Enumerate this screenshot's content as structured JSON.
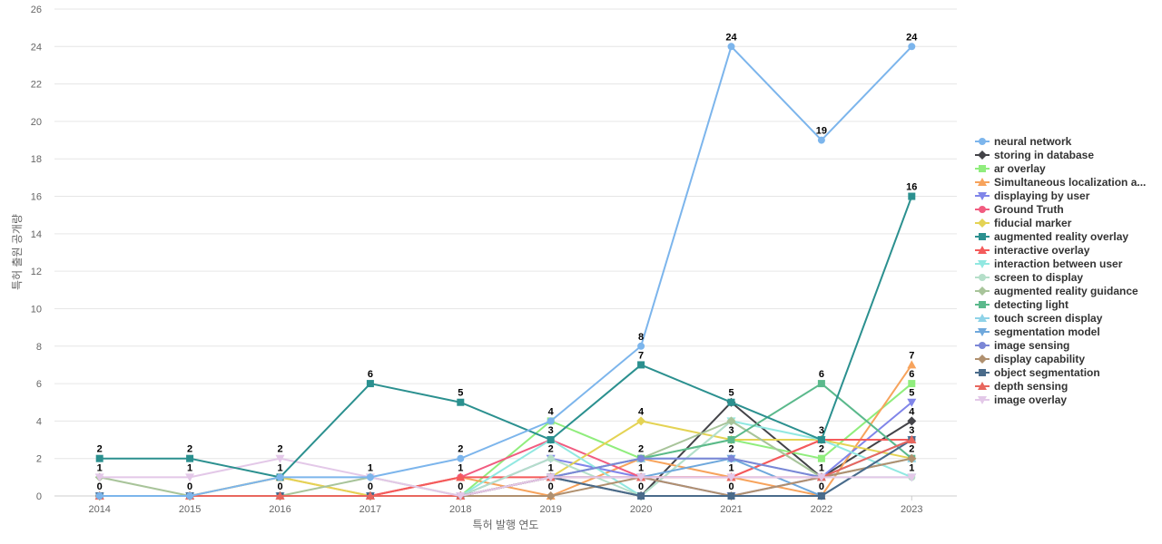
{
  "chart_data": {
    "type": "line",
    "xlabel": "특허 발행 연도",
    "ylabel": "특허 출원 공개량",
    "x": [
      2014,
      2015,
      2016,
      2017,
      2018,
      2019,
      2020,
      2021,
      2022,
      2023
    ],
    "ylim": [
      0,
      26
    ],
    "yticks": [
      0,
      2,
      4,
      6,
      8,
      10,
      12,
      14,
      16,
      18,
      20,
      22,
      24,
      26
    ],
    "grid": true,
    "legend_position": "right",
    "series": [
      {
        "name": "neural network",
        "color": "#7cb5ec",
        "marker": "circle",
        "values": [
          0,
          0,
          1,
          1,
          2,
          4,
          8,
          24,
          19,
          24
        ]
      },
      {
        "name": "storing in database",
        "color": "#434348",
        "marker": "diamond",
        "values": [
          0,
          0,
          0,
          0,
          0,
          1,
          0,
          5,
          1,
          4
        ]
      },
      {
        "name": "ar overlay",
        "color": "#90ed7d",
        "marker": "square",
        "values": [
          0,
          0,
          0,
          0,
          0,
          4,
          2,
          3,
          2,
          6
        ]
      },
      {
        "name": "Simultaneous localization a...",
        "color": "#f7a35c",
        "marker": "triangle",
        "values": [
          0,
          0,
          1,
          0,
          1,
          0,
          2,
          1,
          0,
          7
        ]
      },
      {
        "name": "displaying by user",
        "color": "#8085e9",
        "marker": "triangle-down",
        "values": [
          0,
          0,
          0,
          0,
          0,
          2,
          1,
          0,
          1,
          5
        ]
      },
      {
        "name": "Ground Truth",
        "color": "#f15c80",
        "marker": "circle",
        "values": [
          0,
          0,
          0,
          0,
          1,
          3,
          1,
          1,
          3,
          3
        ]
      },
      {
        "name": "fiducial marker",
        "color": "#e4d354",
        "marker": "diamond",
        "values": [
          0,
          0,
          1,
          0,
          0,
          1,
          4,
          3,
          3,
          2
        ]
      },
      {
        "name": "augmented reality overlay",
        "color": "#2b908f",
        "marker": "square",
        "values": [
          2,
          2,
          1,
          6,
          5,
          3,
          7,
          5,
          3,
          16
        ]
      },
      {
        "name": "interactive overlay",
        "color": "#f45b5b",
        "marker": "triangle",
        "values": [
          0,
          0,
          0,
          0,
          1,
          1,
          1,
          1,
          3,
          3
        ]
      },
      {
        "name": "interaction between user",
        "color": "#91e8e1",
        "marker": "triangle-down",
        "values": [
          0,
          0,
          0,
          0,
          0,
          3,
          0,
          4,
          3,
          1
        ]
      },
      {
        "name": "screen to display",
        "color": "#b5dfc9",
        "marker": "circle",
        "values": [
          0,
          0,
          0,
          0,
          0,
          2,
          0,
          4,
          1,
          1
        ]
      },
      {
        "name": "augmented reality guidance",
        "color": "#a8c49a",
        "marker": "diamond",
        "values": [
          1,
          0,
          0,
          1,
          0,
          1,
          2,
          4,
          1,
          2
        ]
      },
      {
        "name": "detecting light",
        "color": "#5bb98c",
        "marker": "square",
        "values": [
          0,
          0,
          0,
          0,
          0,
          1,
          2,
          3,
          6,
          2
        ]
      },
      {
        "name": "touch screen display",
        "color": "#8fd3e8",
        "marker": "triangle",
        "values": [
          0,
          0,
          0,
          0,
          0,
          1,
          2,
          2,
          1,
          2
        ]
      },
      {
        "name": "segmentation model",
        "color": "#6fa8dc",
        "marker": "triangle-down",
        "values": [
          0,
          0,
          0,
          0,
          0,
          1,
          1,
          2,
          0,
          3
        ]
      },
      {
        "name": "image sensing",
        "color": "#7b86d6",
        "marker": "circle",
        "values": [
          0,
          0,
          0,
          0,
          0,
          1,
          2,
          2,
          1,
          3
        ]
      },
      {
        "name": "display capability",
        "color": "#b0906f",
        "marker": "diamond",
        "values": [
          0,
          0,
          0,
          0,
          0,
          0,
          1,
          0,
          1,
          2
        ]
      },
      {
        "name": "object segmentation",
        "color": "#4a6b8a",
        "marker": "square",
        "values": [
          0,
          0,
          0,
          0,
          0,
          1,
          0,
          0,
          0,
          3
        ]
      },
      {
        "name": "depth sensing",
        "color": "#e8675e",
        "marker": "triangle",
        "values": [
          0,
          0,
          0,
          0,
          0,
          1,
          1,
          1,
          1,
          3
        ]
      },
      {
        "name": "image overlay",
        "color": "#e3c8e8",
        "marker": "triangle-down",
        "values": [
          1,
          1,
          2,
          1,
          0,
          1,
          1,
          1,
          1,
          1
        ]
      }
    ],
    "data_labels": [
      {
        "x": 2014,
        "text": "2",
        "y": 2
      },
      {
        "x": 2014,
        "text": "1",
        "y": 1
      },
      {
        "x": 2014,
        "text": "0",
        "y": 0
      },
      {
        "x": 2015,
        "text": "2",
        "y": 2
      },
      {
        "x": 2015,
        "text": "1",
        "y": 1
      },
      {
        "x": 2015,
        "text": "0",
        "y": 0
      },
      {
        "x": 2016,
        "text": "2",
        "y": 2
      },
      {
        "x": 2016,
        "text": "1",
        "y": 1
      },
      {
        "x": 2016,
        "text": "0",
        "y": 0
      },
      {
        "x": 2017,
        "text": "6",
        "y": 6
      },
      {
        "x": 2017,
        "text": "1",
        "y": 1
      },
      {
        "x": 2017,
        "text": "0",
        "y": 0
      },
      {
        "x": 2018,
        "text": "5",
        "y": 5
      },
      {
        "x": 2018,
        "text": "2",
        "y": 2
      },
      {
        "x": 2018,
        "text": "1",
        "y": 1
      },
      {
        "x": 2018,
        "text": "0",
        "y": 0
      },
      {
        "x": 2019,
        "text": "4",
        "y": 4
      },
      {
        "x": 2019,
        "text": "3",
        "y": 3
      },
      {
        "x": 2019,
        "text": "2",
        "y": 2
      },
      {
        "x": 2019,
        "text": "1",
        "y": 1
      },
      {
        "x": 2019,
        "text": "0",
        "y": 0
      },
      {
        "x": 2020,
        "text": "8",
        "y": 8
      },
      {
        "x": 2020,
        "text": "7",
        "y": 7
      },
      {
        "x": 2020,
        "text": "4",
        "y": 4
      },
      {
        "x": 2020,
        "text": "2",
        "y": 2
      },
      {
        "x": 2020,
        "text": "1",
        "y": 1
      },
      {
        "x": 2020,
        "text": "0",
        "y": 0
      },
      {
        "x": 2021,
        "text": "24",
        "y": 24
      },
      {
        "x": 2021,
        "text": "5",
        "y": 5
      },
      {
        "x": 2021,
        "text": "3",
        "y": 3
      },
      {
        "x": 2021,
        "text": "2",
        "y": 2
      },
      {
        "x": 2021,
        "text": "1",
        "y": 1
      },
      {
        "x": 2021,
        "text": "0",
        "y": 0
      },
      {
        "x": 2022,
        "text": "19",
        "y": 19
      },
      {
        "x": 2022,
        "text": "6",
        "y": 6
      },
      {
        "x": 2022,
        "text": "3",
        "y": 3
      },
      {
        "x": 2022,
        "text": "2",
        "y": 2
      },
      {
        "x": 2022,
        "text": "1",
        "y": 1
      },
      {
        "x": 2022,
        "text": "0",
        "y": 0
      },
      {
        "x": 2023,
        "text": "24",
        "y": 24
      },
      {
        "x": 2023,
        "text": "16",
        "y": 16
      },
      {
        "x": 2023,
        "text": "7",
        "y": 7
      },
      {
        "x": 2023,
        "text": "6",
        "y": 6
      },
      {
        "x": 2023,
        "text": "5",
        "y": 5
      },
      {
        "x": 2023,
        "text": "4",
        "y": 4
      },
      {
        "x": 2023,
        "text": "3",
        "y": 3
      },
      {
        "x": 2023,
        "text": "2",
        "y": 2
      },
      {
        "x": 2023,
        "text": "1",
        "y": 1
      }
    ]
  }
}
